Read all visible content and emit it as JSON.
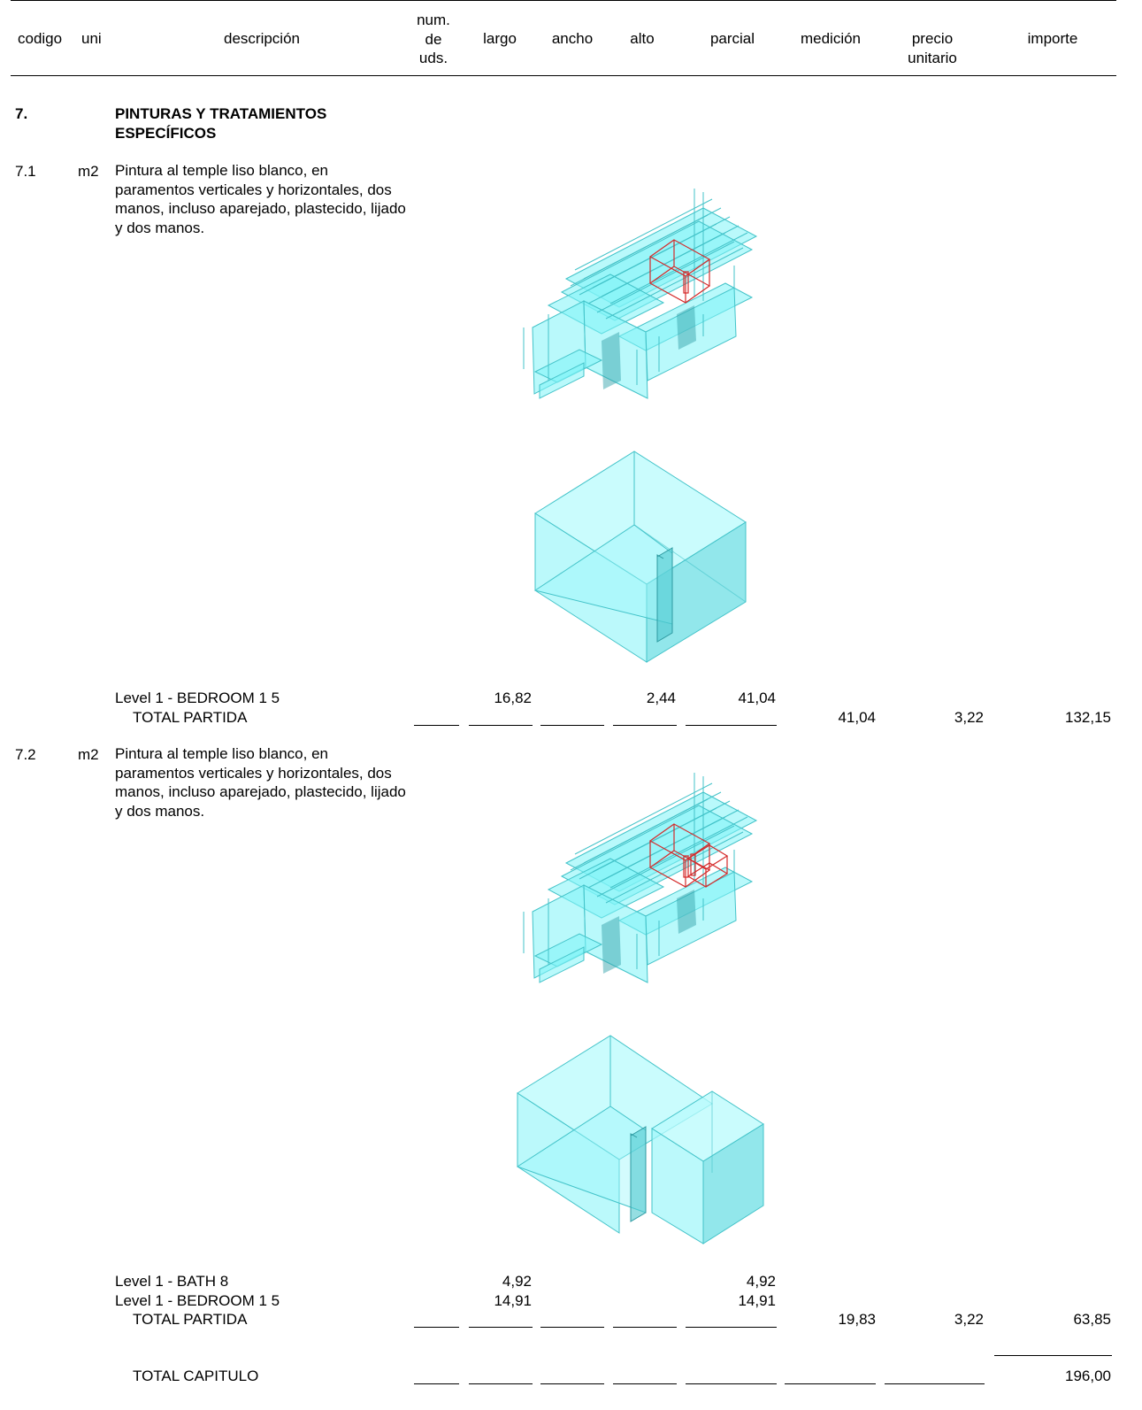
{
  "header": {
    "codigo": "codigo",
    "uni": "uni",
    "descripcion": "descripción",
    "num_uds": "num.\nde\nuds.",
    "largo": "largo",
    "ancho": "ancho",
    "alto": "alto",
    "parcial": "parcial",
    "medicion": "medición",
    "precio_unitario": "precio\nunitario",
    "importe": "importe"
  },
  "chapter": {
    "code": "7.",
    "title": "PINTURAS Y TRATAMIENTOS ESPECÍFICOS",
    "total_label": "TOTAL CAPITULO",
    "total_importe": "196,00"
  },
  "items": [
    {
      "code": "7.1",
      "unit": "m2",
      "description": "Pintura al temple liso blanco, en paramentos verticales y horizontales, dos manos, incluso aparejado, plastecido, lijado y dos manos.",
      "lines": [
        {
          "label": "Level 1 - BEDROOM 1 5",
          "largo": "16,82",
          "alto": "2,44",
          "parcial": "41,04"
        }
      ],
      "total_label": "TOTAL PARTIDA",
      "medicion": "41,04",
      "precio": "3,22",
      "importe": "132,15"
    },
    {
      "code": "7.2",
      "unit": "m2",
      "description": "Pintura al temple liso blanco, en paramentos verticales y horizontales, dos manos, incluso aparejado, plastecido, lijado y dos manos.",
      "lines": [
        {
          "label": "Level 1 - BATH 8",
          "largo": "4,92",
          "alto": "",
          "parcial": "4,92"
        },
        {
          "label": "Level 1 - BEDROOM 1 5",
          "largo": "14,91",
          "alto": "",
          "parcial": "14,91"
        }
      ],
      "total_label": "TOTAL PARTIDA",
      "medicion": "19,83",
      "precio": "3,22",
      "importe": "63,85"
    }
  ],
  "colors": {
    "model_fill": "#7ff4f8",
    "model_edge": "#43c3c9",
    "highlight": "#d42a2a"
  },
  "images": [
    "building-axonometric-icon",
    "room-box-icon"
  ]
}
